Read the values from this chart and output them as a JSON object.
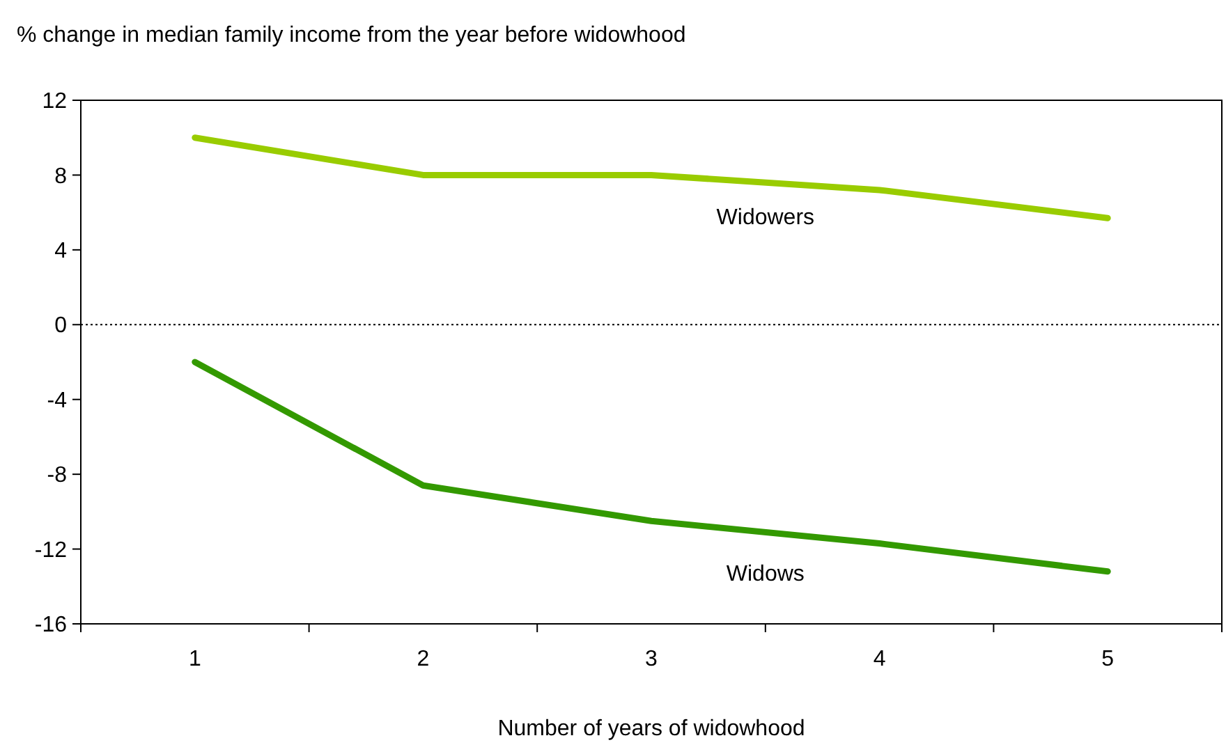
{
  "chart_data": {
    "type": "line",
    "title": "% change in median family income from the year before widowhood",
    "xlabel": "Number of years of widowhood",
    "categories": [
      "1",
      "2",
      "3",
      "4",
      "5"
    ],
    "series": [
      {
        "name": "Widowers",
        "color": "#99cc00",
        "values": [
          10,
          8,
          8,
          7.2,
          5.7
        ]
      },
      {
        "name": "Widows",
        "color": "#339900",
        "values": [
          -2,
          -8.6,
          -10.5,
          -11.7,
          -13.2
        ]
      }
    ],
    "ylim": [
      -16,
      12
    ],
    "yticks": [
      -16,
      -12,
      -8,
      -4,
      0,
      4,
      8,
      12
    ],
    "grid": false,
    "legend": false,
    "marker": "none",
    "line_style": "solid",
    "ref_lines": [
      {
        "axis": "y",
        "value": 0,
        "color": "#000000",
        "line_style": "dotted"
      }
    ]
  }
}
